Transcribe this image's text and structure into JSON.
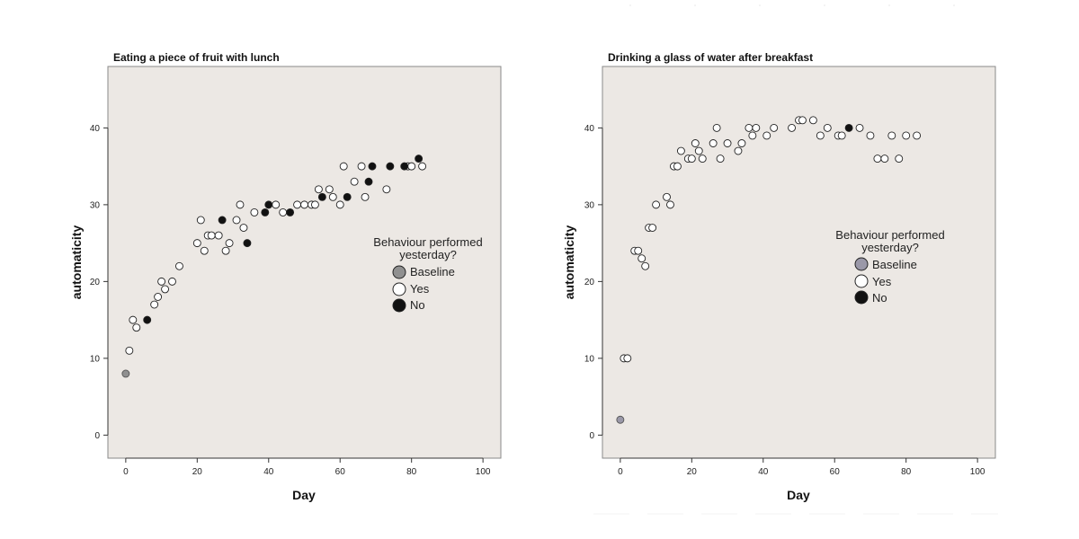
{
  "chart_data": [
    {
      "type": "scatter",
      "title": "Eating a piece of fruit with lunch",
      "xlabel": "Day",
      "ylabel": "automaticity",
      "xlim": [
        -5,
        105
      ],
      "ylim": [
        -3,
        48
      ],
      "xticks": [
        0,
        20,
        40,
        60,
        80,
        100
      ],
      "yticks": [
        0,
        10,
        20,
        30,
        40
      ],
      "legend": {
        "title": "Behaviour performed yesterday?",
        "title_lines": [
          "Behaviour performed",
          "yesterday?"
        ],
        "entries": [
          "Baseline",
          "Yes",
          "No"
        ]
      },
      "series": [
        {
          "name": "Baseline",
          "color": "#909090",
          "points": [
            [
              0,
              8
            ]
          ]
        },
        {
          "name": "Yes",
          "color": "#ffffff",
          "points": [
            [
              1,
              11
            ],
            [
              2,
              15
            ],
            [
              3,
              14
            ],
            [
              8,
              17
            ],
            [
              9,
              18
            ],
            [
              10,
              20
            ],
            [
              11,
              19
            ],
            [
              13,
              20
            ],
            [
              15,
              22
            ],
            [
              20,
              25
            ],
            [
              21,
              28
            ],
            [
              22,
              24
            ],
            [
              23,
              26
            ],
            [
              24,
              26
            ],
            [
              26,
              26
            ],
            [
              28,
              24
            ],
            [
              29,
              25
            ],
            [
              31,
              28
            ],
            [
              32,
              30
            ],
            [
              33,
              27
            ],
            [
              36,
              29
            ],
            [
              42,
              30
            ],
            [
              44,
              29
            ],
            [
              48,
              30
            ],
            [
              50,
              30
            ],
            [
              52,
              30
            ],
            [
              53,
              30
            ],
            [
              54,
              32
            ],
            [
              57,
              32
            ],
            [
              58,
              31
            ],
            [
              60,
              30
            ],
            [
              61,
              35
            ],
            [
              64,
              33
            ],
            [
              66,
              35
            ],
            [
              67,
              31
            ],
            [
              73,
              32
            ],
            [
              79,
              35
            ],
            [
              80,
              35
            ],
            [
              83,
              35
            ]
          ]
        },
        {
          "name": "No",
          "color": "#111111",
          "points": [
            [
              6,
              15
            ],
            [
              27,
              28
            ],
            [
              34,
              25
            ],
            [
              39,
              29
            ],
            [
              40,
              30
            ],
            [
              46,
              29
            ],
            [
              55,
              31
            ],
            [
              62,
              31
            ],
            [
              68,
              33
            ],
            [
              69,
              35
            ],
            [
              74,
              35
            ],
            [
              78,
              35
            ],
            [
              82,
              36
            ]
          ]
        }
      ]
    },
    {
      "type": "scatter",
      "title": "Drinking a glass of water after breakfast",
      "xlabel": "Day",
      "ylabel": "automaticity",
      "xlim": [
        -5,
        105
      ],
      "ylim": [
        -3,
        48
      ],
      "xticks": [
        0,
        20,
        40,
        60,
        80,
        100
      ],
      "yticks": [
        0,
        10,
        20,
        30,
        40
      ],
      "legend": {
        "title": "Behaviour performed yesterday?",
        "title_lines": [
          "Behaviour performed",
          "yesterday?"
        ],
        "entries": [
          "Baseline",
          "Yes",
          "No"
        ]
      },
      "series": [
        {
          "name": "Baseline",
          "color": "#9a98a8",
          "points": [
            [
              0,
              2
            ]
          ]
        },
        {
          "name": "Yes",
          "color": "#ffffff",
          "points": [
            [
              1,
              10
            ],
            [
              2,
              10
            ],
            [
              4,
              24
            ],
            [
              5,
              24
            ],
            [
              6,
              23
            ],
            [
              7,
              22
            ],
            [
              8,
              27
            ],
            [
              9,
              27
            ],
            [
              10,
              30
            ],
            [
              13,
              31
            ],
            [
              14,
              30
            ],
            [
              15,
              35
            ],
            [
              16,
              35
            ],
            [
              17,
              37
            ],
            [
              19,
              36
            ],
            [
              20,
              36
            ],
            [
              21,
              38
            ],
            [
              22,
              37
            ],
            [
              23,
              36
            ],
            [
              26,
              38
            ],
            [
              27,
              40
            ],
            [
              28,
              36
            ],
            [
              30,
              38
            ],
            [
              33,
              37
            ],
            [
              34,
              38
            ],
            [
              36,
              40
            ],
            [
              37,
              39
            ],
            [
              38,
              40
            ],
            [
              41,
              39
            ],
            [
              43,
              40
            ],
            [
              48,
              40
            ],
            [
              50,
              41
            ],
            [
              51,
              41
            ],
            [
              54,
              41
            ],
            [
              56,
              39
            ],
            [
              58,
              40
            ],
            [
              61,
              39
            ],
            [
              62,
              39
            ],
            [
              67,
              40
            ],
            [
              70,
              39
            ],
            [
              72,
              36
            ],
            [
              74,
              36
            ],
            [
              76,
              39
            ],
            [
              78,
              36
            ],
            [
              80,
              39
            ],
            [
              83,
              39
            ]
          ]
        },
        {
          "name": "No",
          "color": "#111111",
          "points": [
            [
              64,
              40
            ]
          ]
        }
      ]
    }
  ]
}
